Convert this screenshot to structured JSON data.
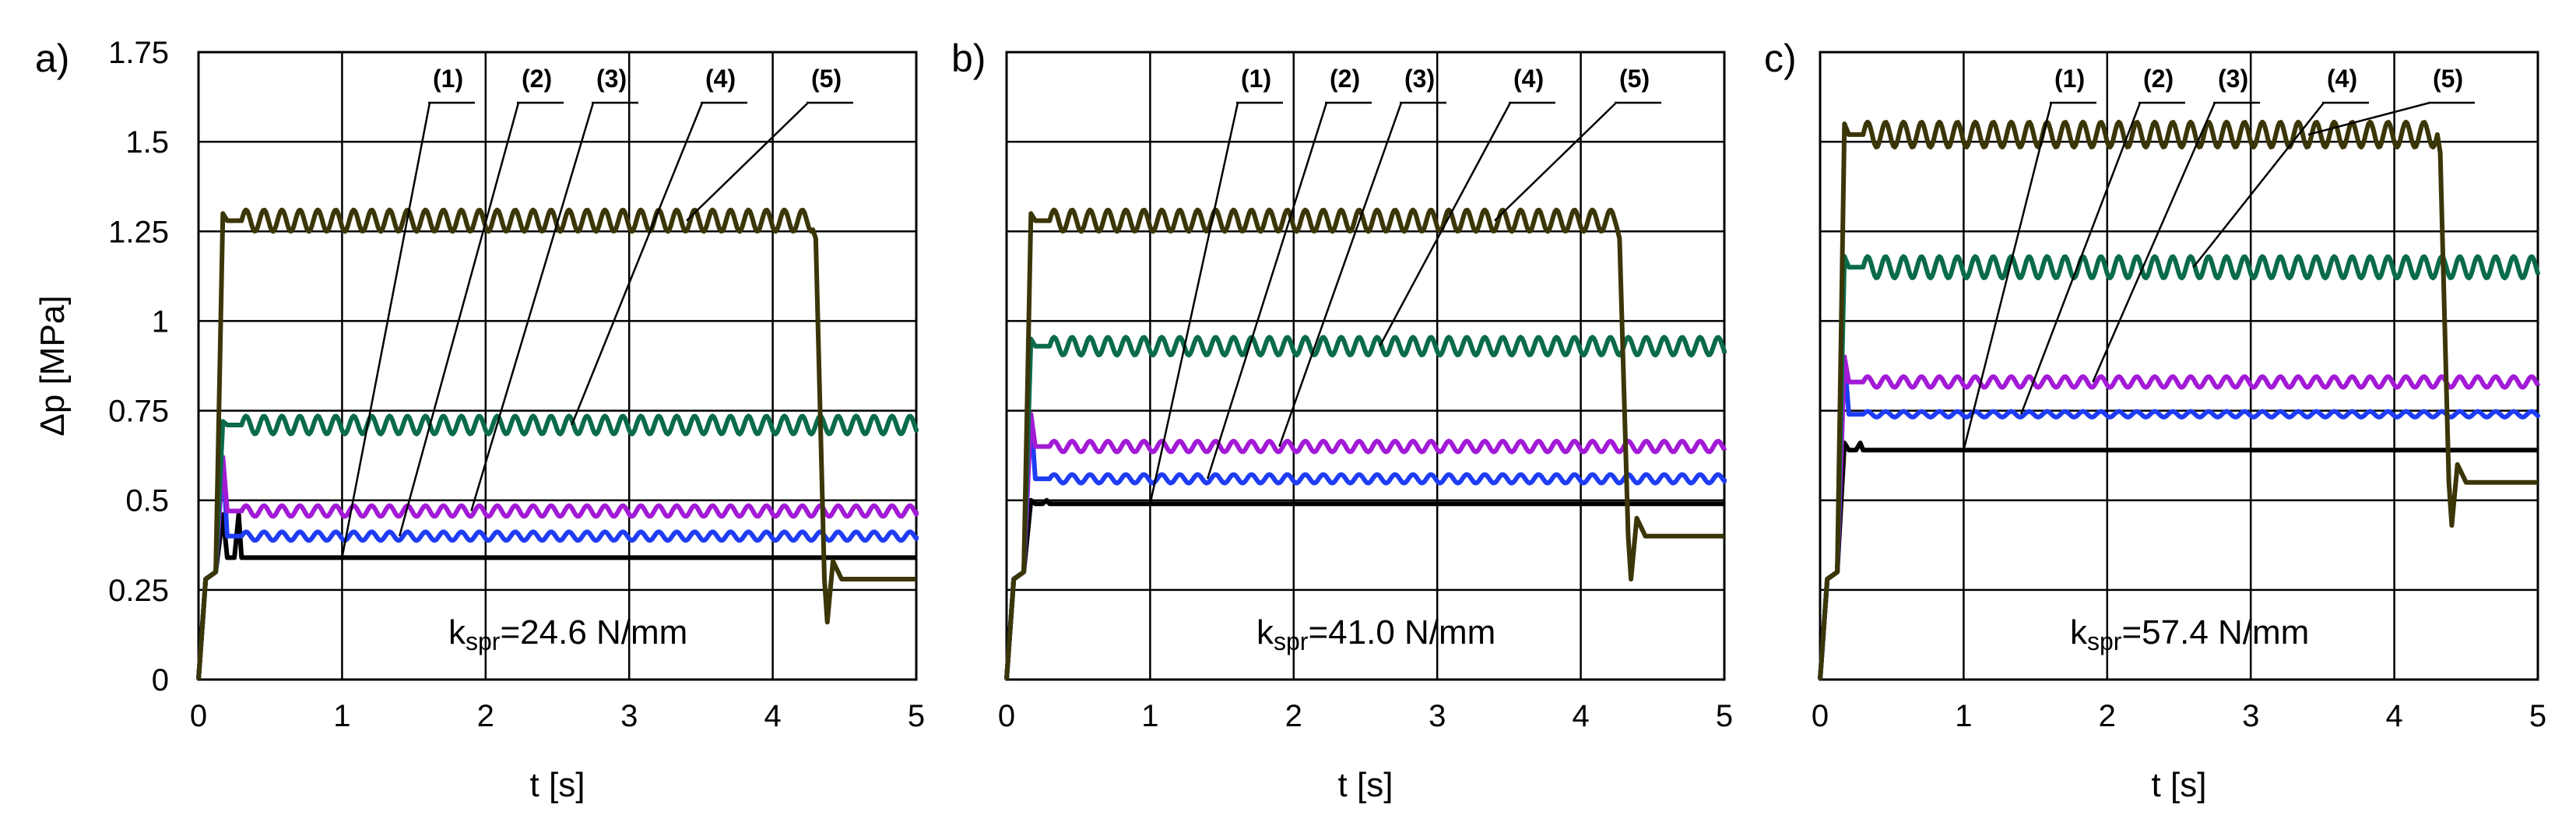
{
  "colors": {
    "s1": "#000000",
    "s2": "#1f3cf5",
    "s3": "#a21ad6",
    "s4": "#0a6b49",
    "s5": "#3b3608",
    "grid": "#000000"
  },
  "chart_data": [
    {
      "type": "line",
      "panel_label": "a)",
      "annotation": "kspr=24.6 N/mm",
      "annotation_main": "k",
      "annotation_sub": "spr",
      "annotation_rest": "=24.6 N/mm",
      "xlabel": "t [s]",
      "ylabel": "Δp [MPa]",
      "xlim": [
        0,
        5
      ],
      "ylim": [
        0,
        1.75
      ],
      "x_ticks": [
        "0",
        "1",
        "2",
        "3",
        "4",
        "5"
      ],
      "y_ticks": [
        "0",
        "0.25",
        "0.5",
        "0.75",
        "1",
        "1.25",
        "1.5",
        "1.75"
      ],
      "series": [
        {
          "name": "(1)",
          "peak": 0.46,
          "steady": 0.34,
          "osc": 0.0,
          "end": 0.34
        },
        {
          "name": "(2)",
          "peak": 0.62,
          "steady": 0.4,
          "osc": 0.012,
          "end": 0.4
        },
        {
          "name": "(3)",
          "peak": 0.62,
          "steady": 0.47,
          "osc": 0.015,
          "end": 0.47
        },
        {
          "name": "(4)",
          "peak": 0.72,
          "steady": 0.71,
          "osc": 0.025,
          "end": 0.7
        },
        {
          "name": "(5)",
          "peak": 1.3,
          "steady": 1.28,
          "osc": 0.03,
          "end": 0.28,
          "drop_time": 4.28
        }
      ],
      "callouts": [
        "(1)",
        "(2)",
        "(3)",
        "(4)",
        "(5)"
      ]
    },
    {
      "type": "line",
      "panel_label": "b)",
      "annotation": "kspr=41.0 N/mm",
      "annotation_main": "k",
      "annotation_sub": "spr",
      "annotation_rest": "=41.0 N/mm",
      "xlabel": "t [s]",
      "ylabel": "",
      "xlim": [
        0,
        5
      ],
      "ylim": [
        0,
        1.75
      ],
      "x_ticks": [
        "0",
        "1",
        "2",
        "3",
        "4",
        "5"
      ],
      "y_ticks": [],
      "series": [
        {
          "name": "(1)",
          "peak": 0.5,
          "steady": 0.49,
          "osc": 0.0,
          "end": 0.49
        },
        {
          "name": "(2)",
          "peak": 0.74,
          "steady": 0.56,
          "osc": 0.012,
          "end": 0.56
        },
        {
          "name": "(3)",
          "peak": 0.74,
          "steady": 0.65,
          "osc": 0.015,
          "end": 0.64
        },
        {
          "name": "(4)",
          "peak": 0.95,
          "steady": 0.93,
          "osc": 0.025,
          "end": 0.91
        },
        {
          "name": "(5)",
          "peak": 1.3,
          "steady": 1.28,
          "osc": 0.03,
          "end": 0.4,
          "drop_time": 4.25
        }
      ],
      "callouts": [
        "(1)",
        "(2)",
        "(3)",
        "(4)",
        "(5)"
      ]
    },
    {
      "type": "line",
      "panel_label": "c)",
      "annotation": "kspr=57.4 N/mm",
      "annotation_main": "k",
      "annotation_sub": "spr",
      "annotation_rest": "=57.4 N/mm",
      "xlabel": "t [s]",
      "ylabel": "",
      "xlim": [
        0,
        5
      ],
      "ylim": [
        0,
        1.75
      ],
      "x_ticks": [
        "0",
        "1",
        "2",
        "3",
        "4",
        "5"
      ],
      "y_ticks": [],
      "series": [
        {
          "name": "(1)",
          "peak": 0.66,
          "steady": 0.64,
          "osc": 0.0,
          "end": 0.64
        },
        {
          "name": "(2)",
          "peak": 0.9,
          "steady": 0.74,
          "osc": 0.008,
          "end": 0.74
        },
        {
          "name": "(3)",
          "peak": 0.9,
          "steady": 0.83,
          "osc": 0.015,
          "end": 0.82
        },
        {
          "name": "(4)",
          "peak": 1.18,
          "steady": 1.15,
          "osc": 0.03,
          "end": 1.13
        },
        {
          "name": "(5)",
          "peak": 1.55,
          "steady": 1.52,
          "osc": 0.035,
          "end": 0.55,
          "drop_time": 4.3
        }
      ],
      "callouts": [
        "(1)",
        "(2)",
        "(3)",
        "(4)",
        "(5)"
      ]
    }
  ]
}
